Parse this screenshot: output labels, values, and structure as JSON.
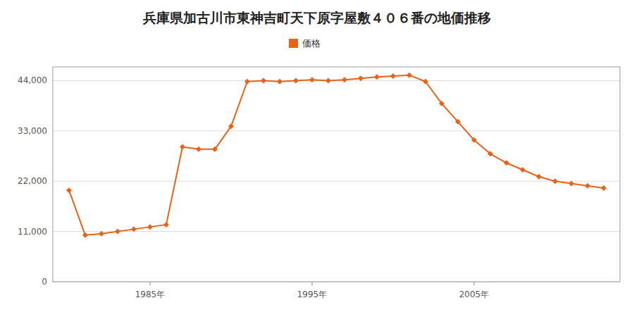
{
  "chart_data": {
    "type": "line",
    "title": "兵庫県加古川市東神吉町天下原字屋敷４０６番の地価推移",
    "x": [
      1980,
      1981,
      1982,
      1983,
      1984,
      1985,
      1986,
      1987,
      1988,
      1989,
      1990,
      1991,
      1992,
      1993,
      1994,
      1995,
      1996,
      1997,
      1998,
      1999,
      2000,
      2001,
      2002,
      2003,
      2004,
      2005,
      2006,
      2007,
      2008,
      2009,
      2010,
      2011,
      2012,
      2013
    ],
    "series": [
      {
        "name": "価格",
        "color": "#e8621a",
        "marker": "diamond",
        "line_style": "solid",
        "values": [
          20000,
          10200,
          10500,
          11000,
          11500,
          12000,
          12500,
          29500,
          29000,
          29000,
          34000,
          43800,
          44000,
          43800,
          44000,
          44200,
          44000,
          44200,
          44500,
          44800,
          45000,
          45200,
          43800,
          39000,
          35000,
          31000,
          28000,
          26000,
          24500,
          23000,
          22000,
          21500,
          21000,
          20500
        ]
      }
    ],
    "xlim": [
      1979,
      2014
    ],
    "xticks": [
      {
        "value": 1985,
        "label": "1985年"
      },
      {
        "value": 1995,
        "label": "1995年"
      },
      {
        "value": 2005,
        "label": "2005年"
      }
    ],
    "ylim": [
      0,
      47000
    ],
    "yticks": [
      0,
      {
        "value": 11000,
        "label": "11,000"
      },
      {
        "value": 22000,
        "label": "22,000"
      },
      {
        "value": 33000,
        "label": "33,000"
      },
      {
        "value": 44000,
        "label": "44,000"
      }
    ],
    "grid": true,
    "legend": "top"
  }
}
